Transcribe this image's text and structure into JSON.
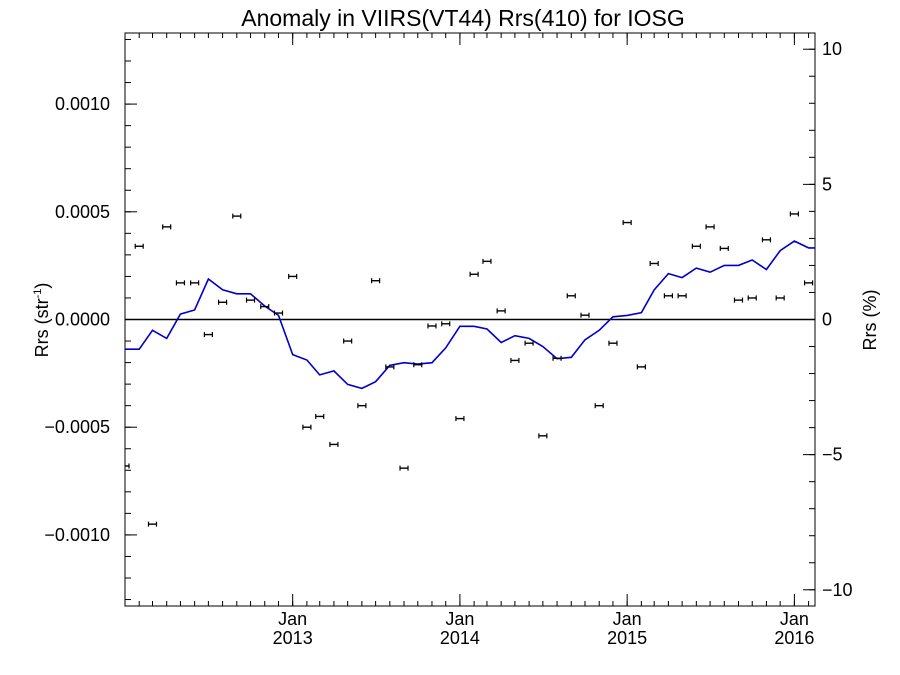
{
  "chart_data": {
    "type": "scatter",
    "title": "Anomaly in VIIRS(VT44) Rrs(410) for IOSG",
    "ylabel_left_main": "Rrs (str",
    "ylabel_left_sup": "-1",
    "ylabel_left_close": ")",
    "ylabel_right": "Rrs (%)",
    "x_axis": {
      "type": "date",
      "range": [
        "2012-01-01",
        "2016-02-15"
      ],
      "major_tick_labels": [
        {
          "month": "Jan",
          "year": "2013",
          "date": "2013-01-01"
        },
        {
          "month": "Jan",
          "year": "2014",
          "date": "2014-01-01"
        },
        {
          "month": "Jan",
          "year": "2015",
          "date": "2015-01-01"
        },
        {
          "month": "Jan",
          "year": "2016",
          "date": "2016-01-01"
        }
      ]
    },
    "y_left": {
      "range": [
        -0.00133,
        0.00133
      ],
      "ticks": [
        -0.001,
        -0.0005,
        0,
        0.0005,
        0.001
      ],
      "tick_labels": [
        "−0.0010",
        "−0.0005",
        "0.0000",
        "0.0005",
        "0.0010"
      ]
    },
    "y_right": {
      "range": [
        -10.6,
        10.6
      ],
      "ticks": [
        -10,
        -5,
        0,
        5,
        10
      ],
      "tick_labels": [
        "−10",
        "−5",
        "0",
        "5",
        "10"
      ]
    },
    "zero_line": true,
    "series": [
      {
        "type": "scatter",
        "axis": "left",
        "color": "#000000",
        "error_bars": true,
        "points": [
          {
            "x": "2012-01-01",
            "y": -0.00068
          },
          {
            "x": "2012-02-01",
            "y": 0.00034
          },
          {
            "x": "2012-03-01",
            "y": -0.00095
          },
          {
            "x": "2012-04-01",
            "y": 0.00043
          },
          {
            "x": "2012-05-01",
            "y": 0.00017
          },
          {
            "x": "2012-06-01",
            "y": 0.00017
          },
          {
            "x": "2012-07-01",
            "y": -7e-05
          },
          {
            "x": "2012-08-01",
            "y": 8e-05
          },
          {
            "x": "2012-09-01",
            "y": 0.00048
          },
          {
            "x": "2012-10-01",
            "y": 9e-05
          },
          {
            "x": "2012-11-01",
            "y": 6e-05
          },
          {
            "x": "2012-12-01",
            "y": 3e-05
          },
          {
            "x": "2013-01-01",
            "y": 0.0002
          },
          {
            "x": "2013-02-01",
            "y": -0.0005
          },
          {
            "x": "2013-03-01",
            "y": -0.00045
          },
          {
            "x": "2013-04-01",
            "y": -0.00058
          },
          {
            "x": "2013-05-01",
            "y": -0.0001
          },
          {
            "x": "2013-06-01",
            "y": -0.0004
          },
          {
            "x": "2013-07-01",
            "y": 0.00018
          },
          {
            "x": "2013-08-01",
            "y": -0.00022
          },
          {
            "x": "2013-09-01",
            "y": -0.00069
          },
          {
            "x": "2013-10-01",
            "y": -0.00021
          },
          {
            "x": "2013-11-01",
            "y": -3e-05
          },
          {
            "x": "2013-12-01",
            "y": -2e-05
          },
          {
            "x": "2014-01-01",
            "y": -0.00046
          },
          {
            "x": "2014-02-01",
            "y": 0.00021
          },
          {
            "x": "2014-03-01",
            "y": 0.00027
          },
          {
            "x": "2014-04-01",
            "y": 4e-05
          },
          {
            "x": "2014-05-01",
            "y": -0.00019
          },
          {
            "x": "2014-06-01",
            "y": -0.00011
          },
          {
            "x": "2014-07-01",
            "y": -0.00054
          },
          {
            "x": "2014-08-01",
            "y": -0.00018
          },
          {
            "x": "2014-09-01",
            "y": 0.00011
          },
          {
            "x": "2014-10-01",
            "y": 2e-05
          },
          {
            "x": "2014-11-01",
            "y": -0.0004
          },
          {
            "x": "2014-12-01",
            "y": -0.00011
          },
          {
            "x": "2015-01-01",
            "y": 0.00045
          },
          {
            "x": "2015-02-01",
            "y": -0.00022
          },
          {
            "x": "2015-03-01",
            "y": 0.00026
          },
          {
            "x": "2015-04-01",
            "y": 0.00011
          },
          {
            "x": "2015-05-01",
            "y": 0.00011
          },
          {
            "x": "2015-06-01",
            "y": 0.00034
          },
          {
            "x": "2015-07-01",
            "y": 0.00043
          },
          {
            "x": "2015-08-01",
            "y": 0.00033
          },
          {
            "x": "2015-09-01",
            "y": 9e-05
          },
          {
            "x": "2015-10-01",
            "y": 0.0001
          },
          {
            "x": "2015-11-01",
            "y": 0.00037
          },
          {
            "x": "2015-12-01",
            "y": 0.0001
          },
          {
            "x": "2016-01-01",
            "y": 0.00049
          },
          {
            "x": "2016-02-01",
            "y": 0.00017
          }
        ]
      },
      {
        "type": "line",
        "axis": "right",
        "color": "#0000cc",
        "points": [
          {
            "x": "2012-01-01",
            "y": -1.1
          },
          {
            "x": "2012-02-01",
            "y": -1.1
          },
          {
            "x": "2012-03-01",
            "y": -0.4
          },
          {
            "x": "2012-04-01",
            "y": -0.7
          },
          {
            "x": "2012-05-01",
            "y": 0.2
          },
          {
            "x": "2012-06-01",
            "y": 0.35
          },
          {
            "x": "2012-07-01",
            "y": 1.5
          },
          {
            "x": "2012-08-01",
            "y": 1.1
          },
          {
            "x": "2012-09-01",
            "y": 0.95
          },
          {
            "x": "2012-10-01",
            "y": 0.95
          },
          {
            "x": "2012-11-01",
            "y": 0.5
          },
          {
            "x": "2012-12-01",
            "y": 0.15
          },
          {
            "x": "2013-01-01",
            "y": -1.3
          },
          {
            "x": "2013-02-01",
            "y": -1.5
          },
          {
            "x": "2013-03-01",
            "y": -2.05
          },
          {
            "x": "2013-04-01",
            "y": -1.9
          },
          {
            "x": "2013-05-01",
            "y": -2.4
          },
          {
            "x": "2013-06-01",
            "y": -2.55
          },
          {
            "x": "2013-07-01",
            "y": -2.3
          },
          {
            "x": "2013-08-01",
            "y": -1.7
          },
          {
            "x": "2013-09-01",
            "y": -1.6
          },
          {
            "x": "2013-10-01",
            "y": -1.65
          },
          {
            "x": "2013-11-01",
            "y": -1.6
          },
          {
            "x": "2013-12-01",
            "y": -1.05
          },
          {
            "x": "2014-01-01",
            "y": -0.25
          },
          {
            "x": "2014-02-01",
            "y": -0.25
          },
          {
            "x": "2014-03-01",
            "y": -0.35
          },
          {
            "x": "2014-04-01",
            "y": -0.85
          },
          {
            "x": "2014-05-01",
            "y": -0.6
          },
          {
            "x": "2014-06-01",
            "y": -0.7
          },
          {
            "x": "2014-07-01",
            "y": -1.0
          },
          {
            "x": "2014-08-01",
            "y": -1.45
          },
          {
            "x": "2014-09-01",
            "y": -1.4
          },
          {
            "x": "2014-10-01",
            "y": -0.75
          },
          {
            "x": "2014-11-01",
            "y": -0.4
          },
          {
            "x": "2014-12-01",
            "y": 0.1
          },
          {
            "x": "2015-01-01",
            "y": 0.15
          },
          {
            "x": "2015-02-01",
            "y": 0.25
          },
          {
            "x": "2015-03-01",
            "y": 1.1
          },
          {
            "x": "2015-04-01",
            "y": 1.7
          },
          {
            "x": "2015-05-01",
            "y": 1.55
          },
          {
            "x": "2015-06-01",
            "y": 1.9
          },
          {
            "x": "2015-07-01",
            "y": 1.75
          },
          {
            "x": "2015-08-01",
            "y": 2.0
          },
          {
            "x": "2015-09-01",
            "y": 2.0
          },
          {
            "x": "2015-10-01",
            "y": 2.2
          },
          {
            "x": "2015-11-01",
            "y": 1.85
          },
          {
            "x": "2015-12-01",
            "y": 2.55
          },
          {
            "x": "2016-01-01",
            "y": 2.9
          },
          {
            "x": "2016-02-01",
            "y": 2.65
          }
        ]
      }
    ]
  }
}
